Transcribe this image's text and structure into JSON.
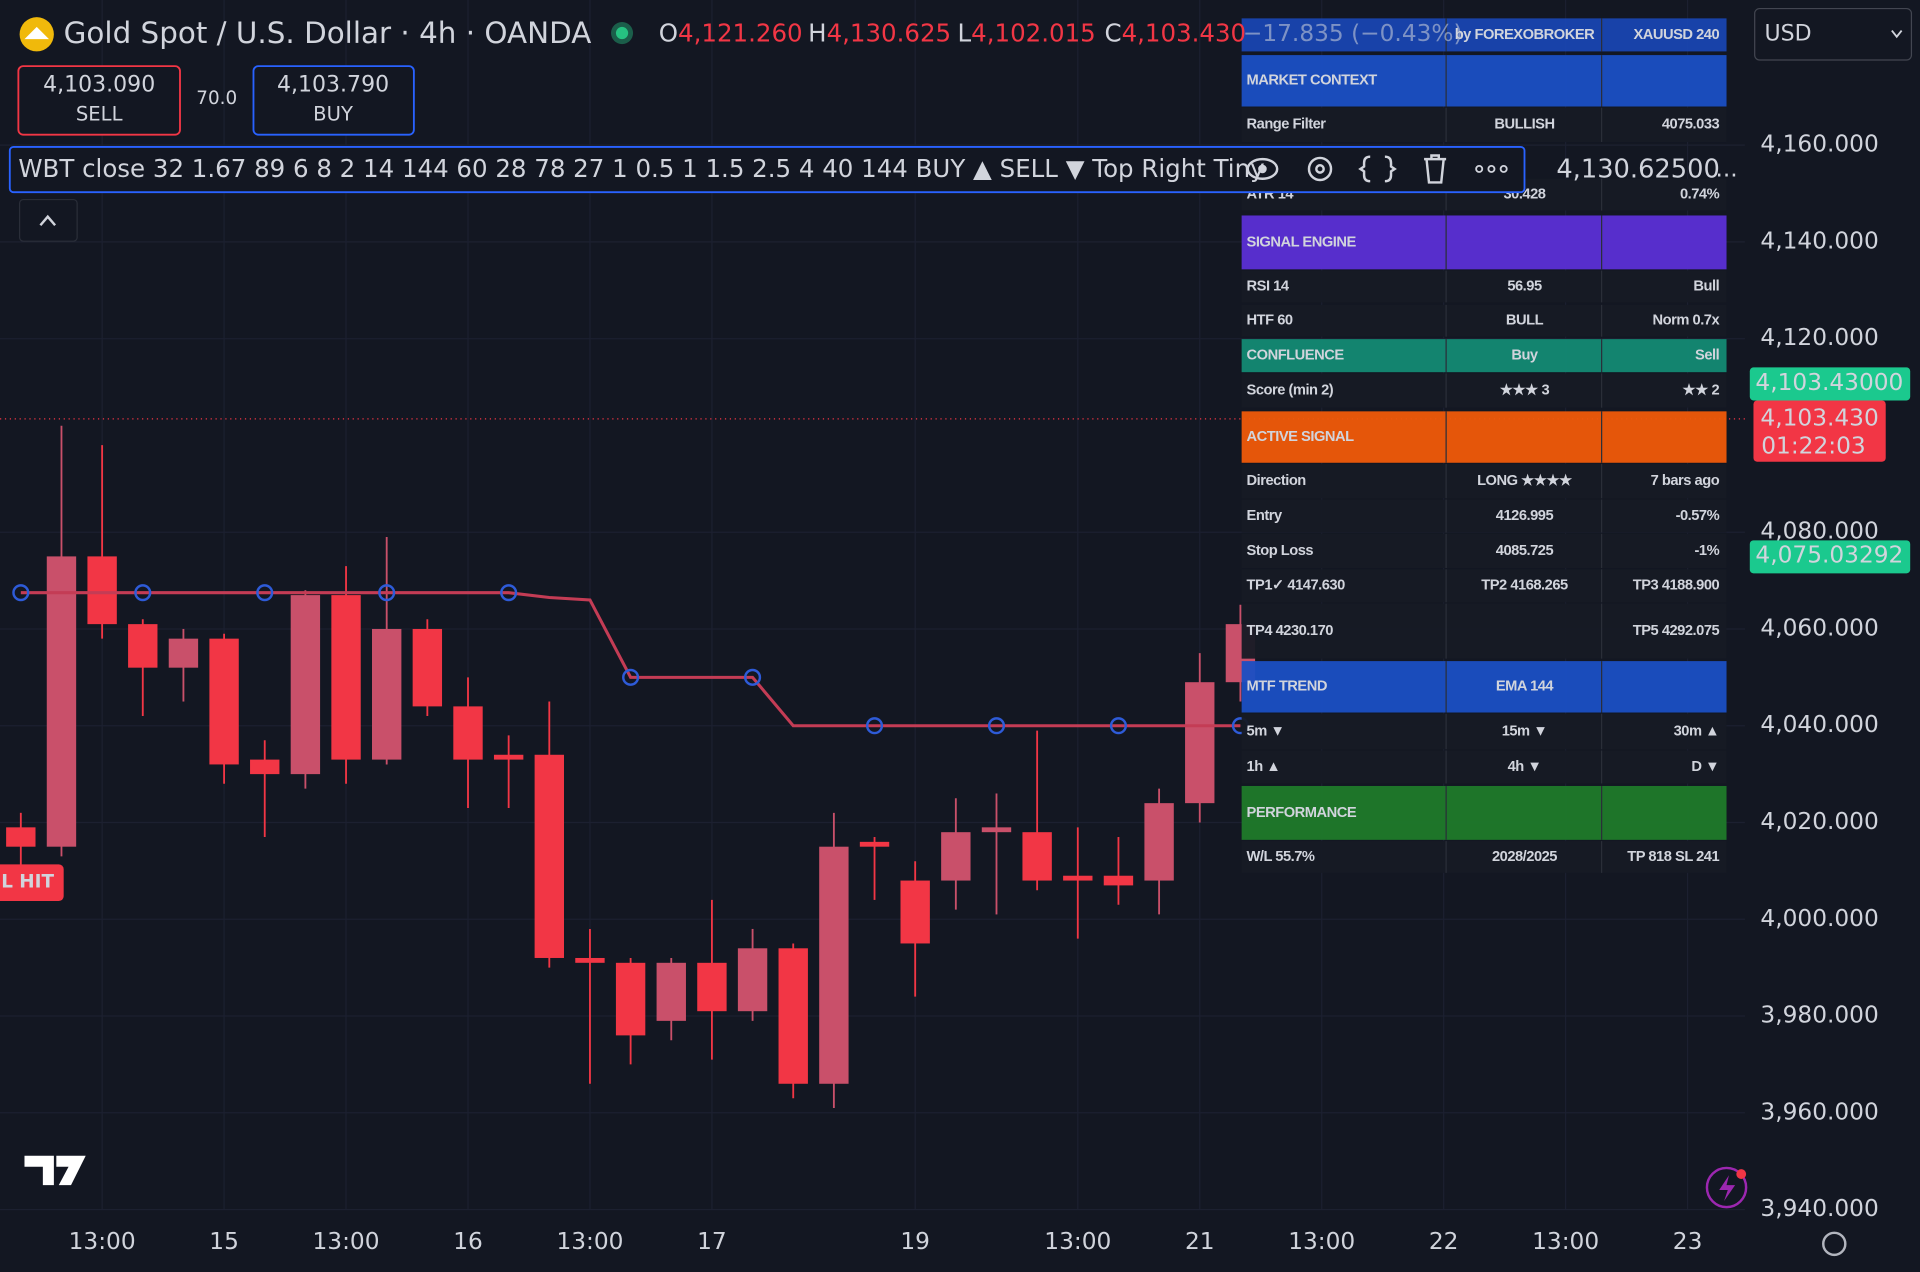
{
  "header": {
    "title": "Gold Spot / U.S. Dollar · 4h · OANDA",
    "ohlc": [
      {
        "key": "O",
        "value": "4,121.260"
      },
      {
        "key": "H",
        "value": "4,130.625"
      },
      {
        "key": "L",
        "value": "4,102.015"
      },
      {
        "key": "C",
        "value": "4,103.430"
      }
    ],
    "change": "−17.835 (−0.43%)",
    "sell_price": "4,103.090",
    "sell_label": "SELL",
    "spread": "70.0",
    "buy_price": "4,103.790",
    "buy_label": "BUY",
    "currency": "USD"
  },
  "toolbar": {
    "text": "WBT close 32 1.67 89 6 8 2 14 144 60 28 78 27 1 0.5 1 1.5 2.5 4 40 144 BUY ▲ SELL ▼ Top Right Tiny",
    "value": "4,130.62500",
    "more": "..."
  },
  "signal_tag": "L HIT",
  "panel": {
    "rows": [
      {
        "cells": [
          "",
          "by FOREXOBROKER",
          "XAUUSD 240"
        ],
        "bg": "#1a47b8",
        "colors": [
          "#ffffff",
          "#ffffff",
          "#ffffff"
        ]
      },
      {
        "cells": [
          "MARKET CONTEXT",
          "",
          ""
        ],
        "bg": "#1a4fc4",
        "colors": [
          "#ffffff",
          "#ffffff",
          "#ffffff"
        ]
      },
      {
        "cells": [
          "Range Filter",
          "BULLISH",
          "4075.033"
        ],
        "bg": "#161a25",
        "colors": [
          "#9598a1",
          "#26c281",
          "#26c281"
        ]
      },
      {
        "cells": [
          "ATR 14",
          "30.428",
          "0.74%"
        ],
        "bg": "#161a25",
        "colors": [
          "#d1d4dc",
          "#ffffff",
          "#f0a030"
        ]
      },
      {
        "cells": [
          "SIGNAL ENGINE",
          "",
          ""
        ],
        "bg": "#5b2fd6",
        "colors": [
          "#ffffff",
          "#ffffff",
          "#ffffff"
        ]
      },
      {
        "cells": [
          "RSI 14",
          "56.95",
          "Bull"
        ],
        "bg": "#161a25",
        "colors": [
          "#d1d4dc",
          "#26c281",
          "#26c281"
        ]
      },
      {
        "cells": [
          "HTF 60",
          "BULL",
          "Norm 0.7x"
        ],
        "bg": "#161a25",
        "colors": [
          "#d1d4dc",
          "#26c281",
          "#787b86"
        ]
      },
      {
        "cells": [
          "CONFLUENCE",
          "Buy",
          "Sell"
        ],
        "bg": "#138a74",
        "colors": [
          "#ffffff",
          "#ffffff",
          "#ffffff"
        ]
      },
      {
        "cells": [
          "Score (min 2)",
          "★★★ 3",
          "★★ 2"
        ],
        "bg": "#161a25",
        "colors": [
          "#d1d4dc",
          "#26c281",
          "#f23645"
        ]
      },
      {
        "cells": [
          "ACTIVE SIGNAL",
          "",
          ""
        ],
        "bg": "#f05a0a",
        "colors": [
          "#ffffff",
          "#ffffff",
          "#ffffff"
        ]
      },
      {
        "cells": [
          "Direction",
          "LONG ★★★★",
          "7 bars ago"
        ],
        "bg": "#161a25",
        "colors": [
          "#d1d4dc",
          "#26c281",
          "#26c281"
        ]
      },
      {
        "cells": [
          "Entry",
          "4126.995",
          "-0.57%"
        ],
        "bg": "#161a25",
        "colors": [
          "#d1d4dc",
          "#ffffff",
          "#f23645"
        ]
      },
      {
        "cells": [
          "Stop Loss",
          "4085.725",
          "-1%"
        ],
        "bg": "#161a25",
        "colors": [
          "#d1d4dc",
          "#f23645",
          "#f23645"
        ]
      },
      {
        "cells": [
          "TP1✓ 4147.630",
          "TP2 4168.265",
          "TP3 4188.900"
        ],
        "bg": "#161a25",
        "colors": [
          "#26c281",
          "#26c281",
          "#26c281"
        ]
      },
      {
        "cells": [
          "TP4 4230.170",
          "",
          "TP5 4292.075"
        ],
        "bg": "#161a25",
        "colors": [
          "#26c281",
          "#26c281",
          "#26c281"
        ]
      },
      {
        "cells": [
          "MTF TREND",
          "EMA 144",
          ""
        ],
        "bg": "#1a4fc4",
        "colors": [
          "#ffffff",
          "#ffffff",
          "#ffffff"
        ]
      },
      {
        "cells": [
          "5m ▼",
          "15m ▼",
          "30m ▲"
        ],
        "bg": "#161a25",
        "colors": [
          "#f23645",
          "#f23645",
          "#26c281"
        ]
      },
      {
        "cells": [
          "1h ▲",
          "4h ▼",
          "D ▼"
        ],
        "bg": "#161a25",
        "colors": [
          "#26c281",
          "#f23645",
          "#f23645"
        ]
      },
      {
        "cells": [
          "PERFORMANCE",
          "",
          ""
        ],
        "bg": "#1f7a2a",
        "colors": [
          "#ffffff",
          "#ffffff",
          "#ffffff"
        ]
      },
      {
        "cells": [
          "W/L 55.7%",
          "2028/2025",
          "TP 818  SL 241"
        ],
        "bg": "#161a25",
        "colors": [
          "#26c281",
          "#ffffff",
          "#787b86"
        ]
      }
    ]
  },
  "chart_data": {
    "type": "candlestick",
    "categories": [
      null,
      null,
      "13:00",
      null,
      null,
      "15",
      null,
      null,
      "13:00",
      null,
      null,
      "16",
      null,
      null,
      "13:00",
      null,
      null,
      "17",
      null,
      null,
      null,
      null,
      "19",
      null,
      null,
      null,
      "13:00",
      null,
      null,
      "21",
      null,
      null,
      "13:00",
      null,
      null,
      "22",
      null,
      null,
      "13:00",
      null,
      null,
      "23"
    ],
    "open": [
      4019,
      4015,
      4075,
      4061,
      4052,
      4058,
      4033,
      4030,
      4067,
      4033,
      4060,
      4044,
      4034,
      4034,
      3992,
      3991,
      3979,
      3991,
      3981,
      3994,
      3966,
      4016,
      4008,
      4008,
      4018,
      4018,
      4009,
      4009,
      4008,
      4024,
      4049,
      null,
      null,
      null,
      null,
      null,
      null,
      null,
      null,
      null,
      null,
      null
    ],
    "high": [
      4022,
      4102,
      4098,
      4062,
      4060,
      4059,
      4037,
      4068,
      4073,
      4079,
      4062,
      4050,
      4038,
      4045,
      3998,
      3992,
      3992,
      4004,
      3998,
      3995,
      4022,
      4017,
      4012,
      4025,
      4026,
      4039,
      4019,
      4017,
      4027,
      4055,
      4065,
      null,
      null,
      null,
      null,
      null,
      null,
      null,
      null,
      null,
      null,
      null
    ],
    "low": [
      4010,
      4013,
      4058,
      4042,
      4045,
      4028,
      4017,
      4027,
      4028,
      4032,
      4042,
      4023,
      4023,
      3990,
      3966,
      3970,
      3975,
      3971,
      3979,
      3963,
      3961,
      4004,
      3984,
      4002,
      4001,
      4006,
      3996,
      4003,
      4001,
      4020,
      4045,
      null,
      null,
      null,
      null,
      null,
      null,
      null,
      null,
      null,
      null,
      null
    ],
    "close": [
      4015,
      4075,
      4061,
      4052,
      4058,
      4032,
      4030,
      4067,
      4033,
      4060,
      4044,
      4033,
      4033,
      3992,
      3991,
      3976,
      3991,
      3981,
      3994,
      3966,
      4015,
      4015,
      3995,
      4018,
      4019,
      4008,
      4008,
      4007,
      4024,
      4049,
      4061,
      null,
      null,
      null,
      null,
      null,
      null,
      null,
      null,
      null,
      null,
      null
    ],
    "up_color": "#c9506a",
    "down_color": "#f23645",
    "series": [
      {
        "name": "Range Filter",
        "color": "#c43c55",
        "values": [
          4067.5,
          4067.5,
          4067.5,
          4067.5,
          4067.5,
          4067.5,
          4067.5,
          4067.5,
          4067.5,
          4067.5,
          4067.5,
          4067.5,
          4067.5,
          4066.5,
          4066,
          4050,
          4050,
          4050,
          4050,
          4040,
          4040,
          4040,
          4040,
          4040,
          4040,
          4040,
          4040,
          4040,
          4040,
          4040,
          4040,
          null,
          null,
          null,
          null,
          null,
          null,
          null,
          null,
          null,
          null,
          null
        ]
      }
    ],
    "marker_color": "#2e5bd8",
    "last_price": 4103.43,
    "price_labels": [
      {
        "value": 4103.43,
        "label": "4,103.43000",
        "color": "#1bc98e",
        "text_color": "#131722"
      },
      {
        "value": 4103.43,
        "label": "4,103.430",
        "sub": "01:22:03",
        "color": "#f23645",
        "text_color": "#ffffff"
      },
      {
        "value": 4075.03292,
        "label": "4,075.03292",
        "color": "#1bc98e",
        "text_color": "#131722"
      }
    ],
    "ylim": [
      3940,
      4190
    ],
    "yticks": [
      {
        "value": 3940,
        "label": "3,940.000"
      },
      {
        "value": 3960,
        "label": "3,960.000"
      },
      {
        "value": 3980,
        "label": "3,980.000"
      },
      {
        "value": 4000,
        "label": "4,000.000"
      },
      {
        "value": 4020,
        "label": "4,020.000"
      },
      {
        "value": 4040,
        "label": "4,040.000"
      },
      {
        "value": 4060,
        "label": "4,060.000"
      },
      {
        "value": 4080,
        "label": "4,080.000"
      },
      {
        "value": 4120,
        "label": "4,120.000"
      },
      {
        "value": 4140,
        "label": "4,140.000"
      },
      {
        "value": 4160,
        "label": "4,160.000"
      }
    ],
    "grid": true
  }
}
